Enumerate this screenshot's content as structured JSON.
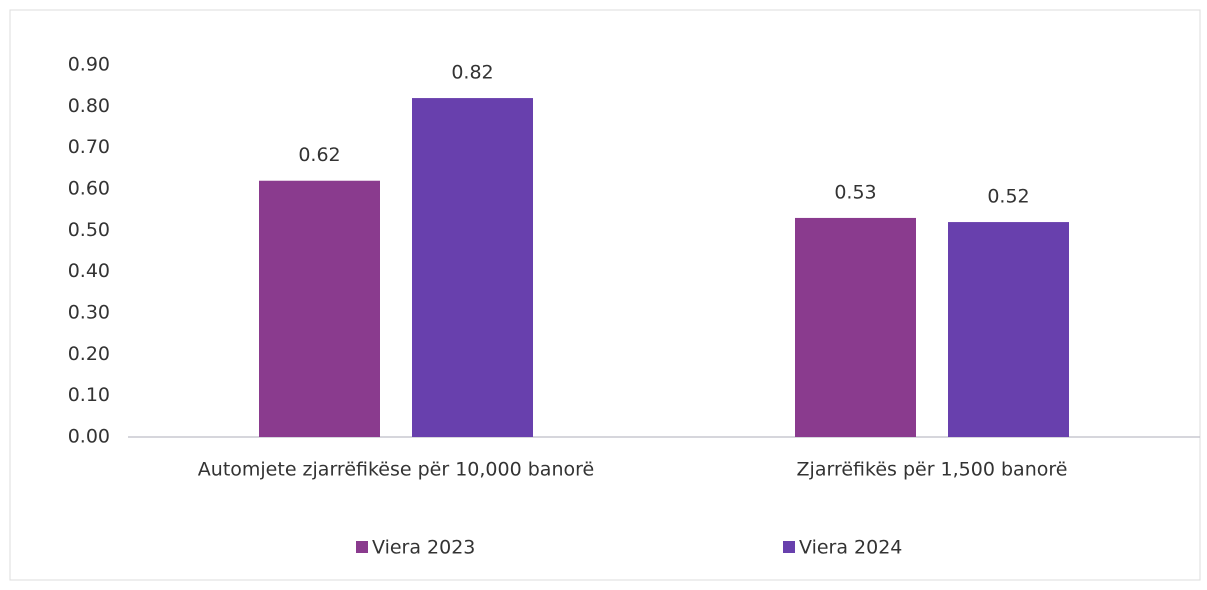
{
  "chart_data": {
    "type": "bar",
    "categories": [
      "Automjete zjarrëfikëse për 10,000 banorë",
      "Zjarrëfikës për 1,500 banorë"
    ],
    "series": [
      {
        "name": "Viera 2023",
        "color": "#8a3b8e",
        "values": [
          0.62,
          0.53
        ]
      },
      {
        "name": "Viera 2024",
        "color": "#6840ad",
        "values": [
          0.82,
          0.52
        ]
      }
    ],
    "ylim": [
      0,
      0.9
    ],
    "yticks": [
      {
        "value": 0,
        "label": "0.00"
      },
      {
        "value": 0.1,
        "label": "0.10"
      },
      {
        "value": 0.2,
        "label": "0.20"
      },
      {
        "value": 0.3,
        "label": "0.30"
      },
      {
        "value": 0.4,
        "label": "0.40"
      },
      {
        "value": 0.5,
        "label": "0.50"
      },
      {
        "value": 0.6,
        "label": "0.60"
      },
      {
        "value": 0.7,
        "label": "0.70"
      },
      {
        "value": 0.8,
        "label": "0.80"
      },
      {
        "value": 0.9,
        "label": "0.90"
      }
    ],
    "legend": "bottom"
  }
}
